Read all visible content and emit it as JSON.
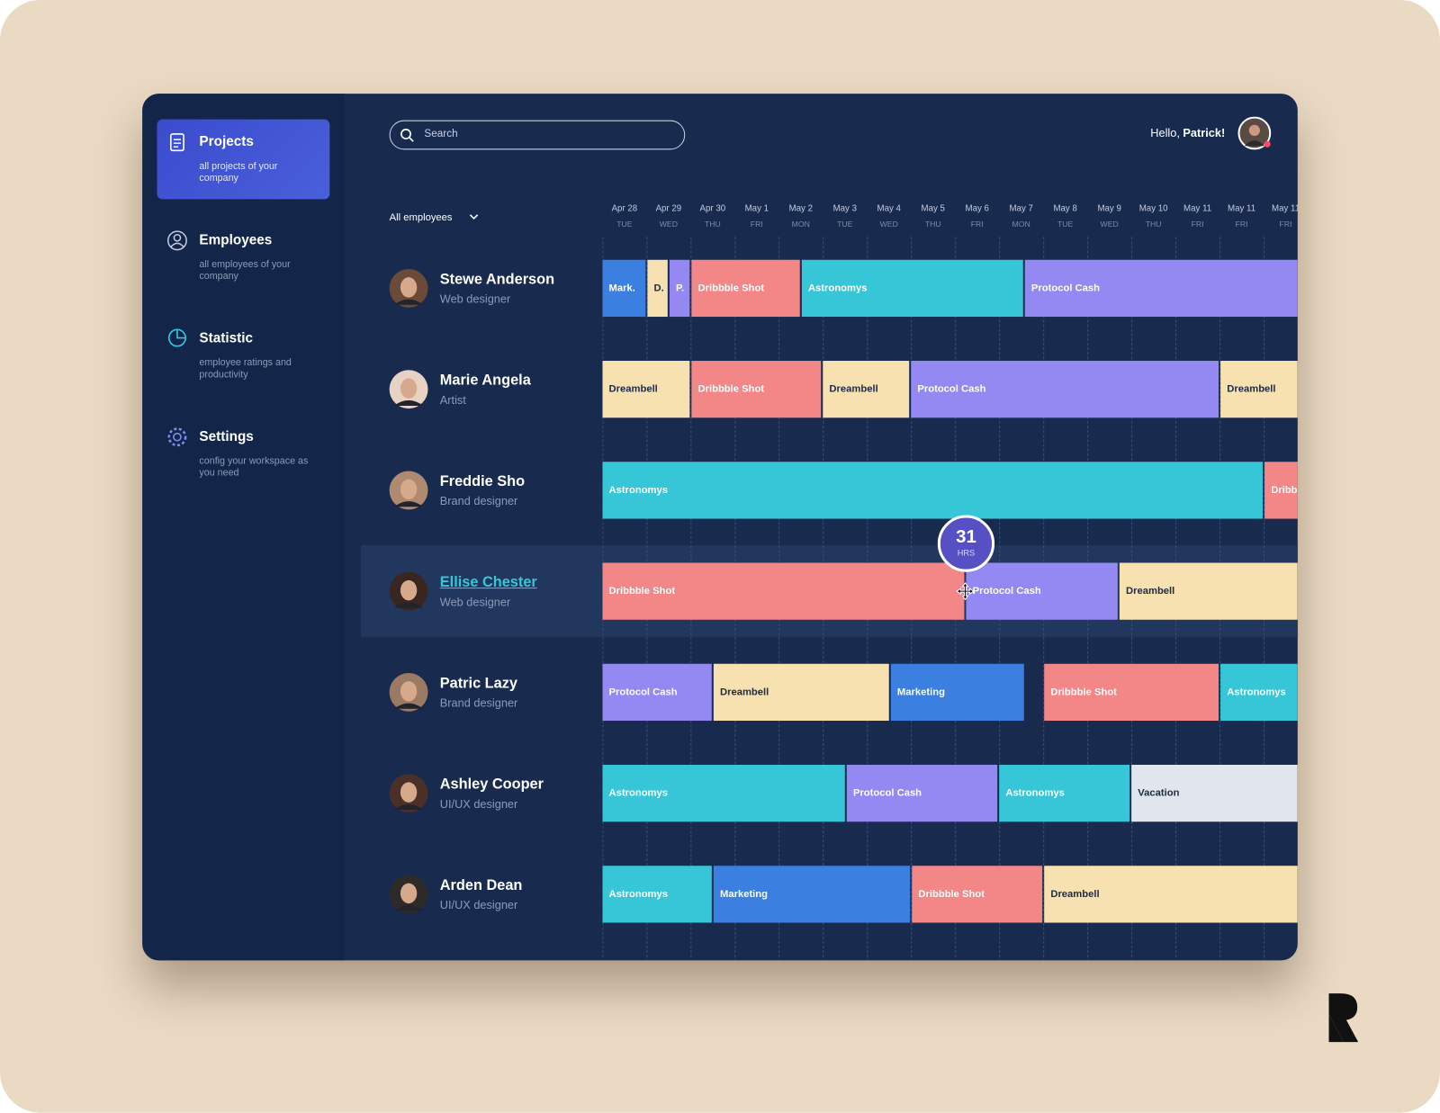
{
  "sidebar": {
    "items": [
      {
        "title": "Projects",
        "subtitle": "all projects of your company"
      },
      {
        "title": "Employees",
        "subtitle": "all employees of your company"
      },
      {
        "title": "Statistic",
        "subtitle": "employee ratings and productivity"
      },
      {
        "title": "Settings",
        "subtitle": "config your workspace as you need"
      }
    ]
  },
  "header": {
    "search_placeholder": "Search",
    "greeting": "Hello,",
    "user": "Patrick!"
  },
  "filter": "All employees",
  "timeline": {
    "dates": [
      {
        "date": "Apr 28",
        "day": "TUE"
      },
      {
        "date": "Apr 29",
        "day": "WED"
      },
      {
        "date": "Apr 30",
        "day": "THU"
      },
      {
        "date": "May 1",
        "day": "FRI"
      },
      {
        "date": "May 2",
        "day": "MON"
      },
      {
        "date": "May 3",
        "day": "TUE"
      },
      {
        "date": "May 4",
        "day": "WED"
      },
      {
        "date": "May 5",
        "day": "THU"
      },
      {
        "date": "May 6",
        "day": "FRI"
      },
      {
        "date": "May 7",
        "day": "MON"
      },
      {
        "date": "May 8",
        "day": "TUE"
      },
      {
        "date": "May 9",
        "day": "WED"
      },
      {
        "date": "May 10",
        "day": "THU"
      },
      {
        "date": "May 11",
        "day": "FRI"
      },
      {
        "date": "May 11",
        "day": "FRI"
      },
      {
        "date": "May 11",
        "day": "FRI"
      }
    ]
  },
  "employees": [
    {
      "name": "Stewe Anderson",
      "role": "Web designer",
      "tasks": [
        {
          "label": "Mark.",
          "color": "#3b7fe0"
        },
        {
          "label": "D.",
          "color": "#f8e1b0"
        },
        {
          "label": "P.",
          "color": "#9488f2"
        },
        {
          "label": "Dribbble Shot",
          "color": "#f38686"
        },
        {
          "label": "Astronomys",
          "color": "#37c6d8"
        },
        {
          "label": "Protocol Cash",
          "color": "#9488f2"
        }
      ]
    },
    {
      "name": "Marie Angela",
      "role": "Artist",
      "tasks": [
        {
          "label": "Dreambell",
          "color": "#f8e1b0"
        },
        {
          "label": "Dribbble Shot",
          "color": "#f38686"
        },
        {
          "label": "Dreambell",
          "color": "#f8e1b0"
        },
        {
          "label": "Protocol Cash",
          "color": "#9488f2"
        },
        {
          "label": "Dreambell",
          "color": "#f8e1b0"
        }
      ]
    },
    {
      "name": "Freddie Sho",
      "role": "Brand designer",
      "tasks": [
        {
          "label": "Astronomys",
          "color": "#37c6d8"
        },
        {
          "label": "Dribbble Shot",
          "color": "#f38686"
        }
      ]
    },
    {
      "name": "Ellise Chester",
      "role": "Web designer",
      "tasks": [
        {
          "label": "Dribbble Shot",
          "color": "#f38686"
        },
        {
          "label": "Protocol Cash",
          "color": "#9488f2"
        },
        {
          "label": "Dreambell",
          "color": "#f8e1b0"
        }
      ]
    },
    {
      "name": "Patric Lazy",
      "role": "Brand designer",
      "tasks": [
        {
          "label": "Protocol Cash",
          "color": "#9488f2"
        },
        {
          "label": "Dreambell",
          "color": "#f8e1b0"
        },
        {
          "label": "Marketing",
          "color": "#3b7fe0"
        },
        {
          "label": "Dribbble Shot",
          "color": "#f38686"
        },
        {
          "label": "Astronomys",
          "color": "#37c6d8"
        }
      ]
    },
    {
      "name": "Ashley Cooper",
      "role": "UI/UX designer",
      "tasks": [
        {
          "label": "Astronomys",
          "color": "#37c6d8"
        },
        {
          "label": "Protocol Cash",
          "color": "#9488f2"
        },
        {
          "label": "Astronomys",
          "color": "#37c6d8"
        },
        {
          "label": "Vacation",
          "color": "#e1e5ec"
        }
      ]
    },
    {
      "name": "Arden Dean",
      "role": "UI/UX designer",
      "tasks": [
        {
          "label": "Astronomys",
          "color": "#37c6d8"
        },
        {
          "label": "Marketing",
          "color": "#3b7fe0"
        },
        {
          "label": "Dribbble Shot",
          "color": "#f38686"
        },
        {
          "label": "Dreambell",
          "color": "#f8e1b0"
        }
      ]
    }
  ],
  "tooltip": {
    "value": "31",
    "unit": "HRS"
  }
}
